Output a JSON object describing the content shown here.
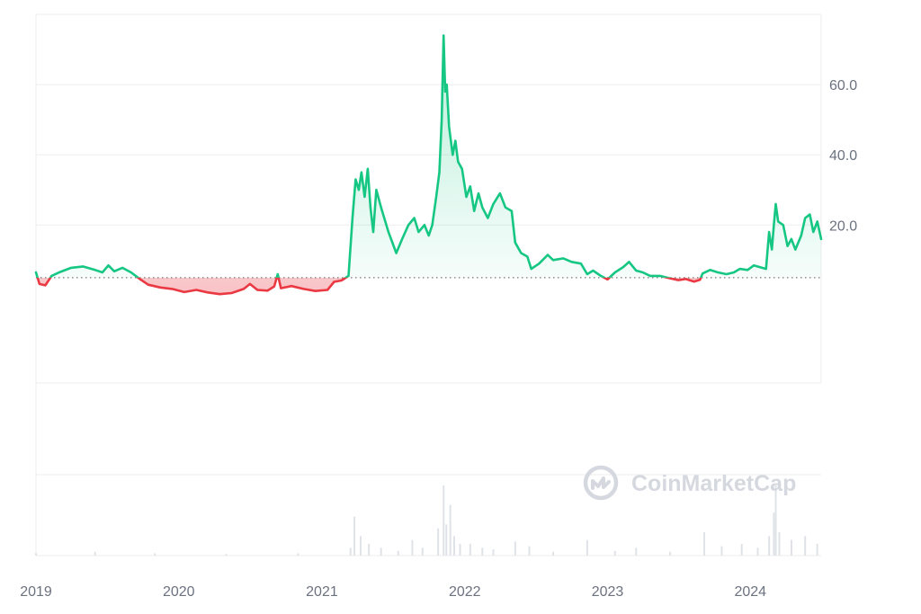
{
  "watermark": {
    "text": "CoinMarketCap",
    "icon": "coinmarketcap-logo-icon"
  },
  "chart_data": {
    "type": "area",
    "xlabel": "",
    "ylabel": "",
    "x_tick_labels": [
      "2019",
      "2020",
      "2021",
      "2022",
      "2023",
      "2024"
    ],
    "y_tick_labels": [
      "20.0",
      "40.0",
      "60.0"
    ],
    "x_range": [
      "2019-01-01",
      "2024-06-30"
    ],
    "y_range": [
      -25,
      80
    ],
    "baseline": 5.0,
    "colors": {
      "above": "#16c784",
      "below": "#ea3943",
      "grid": "#eeeeee",
      "baseline": "#777777",
      "volume": "#dfe3e8"
    },
    "grid": true,
    "legend": "none",
    "series": [
      {
        "values": [
          [
            "2019-01-01",
            6.5
          ],
          [
            "2019-01-10",
            3.2
          ],
          [
            "2019-01-25",
            2.8
          ],
          [
            "2019-02-10",
            5.5
          ],
          [
            "2019-03-01",
            6.5
          ],
          [
            "2019-04-01",
            7.8
          ],
          [
            "2019-05-01",
            8.2
          ],
          [
            "2019-06-01",
            7.2
          ],
          [
            "2019-06-20",
            6.5
          ],
          [
            "2019-07-05",
            8.5
          ],
          [
            "2019-07-20",
            6.8
          ],
          [
            "2019-08-10",
            7.8
          ],
          [
            "2019-09-01",
            6.5
          ],
          [
            "2019-09-25",
            4.5
          ],
          [
            "2019-10-15",
            3.0
          ],
          [
            "2019-11-15",
            2.2
          ],
          [
            "2019-12-15",
            1.8
          ],
          [
            "2020-01-15",
            0.9
          ],
          [
            "2020-02-15",
            1.5
          ],
          [
            "2020-03-15",
            0.8
          ],
          [
            "2020-04-15",
            0.3
          ],
          [
            "2020-05-15",
            0.6
          ],
          [
            "2020-06-15",
            1.8
          ],
          [
            "2020-07-01",
            3.2
          ],
          [
            "2020-07-20",
            1.5
          ],
          [
            "2020-08-15",
            1.3
          ],
          [
            "2020-09-01",
            2.5
          ],
          [
            "2020-09-10",
            6.0
          ],
          [
            "2020-09-18",
            2.0
          ],
          [
            "2020-10-15",
            2.6
          ],
          [
            "2020-11-15",
            1.8
          ],
          [
            "2020-12-15",
            1.2
          ],
          [
            "2021-01-15",
            1.5
          ],
          [
            "2021-02-01",
            3.8
          ],
          [
            "2021-02-20",
            4.2
          ],
          [
            "2021-03-10",
            5.5
          ],
          [
            "2021-03-20",
            22.0
          ],
          [
            "2021-03-28",
            33.0
          ],
          [
            "2021-04-05",
            30.0
          ],
          [
            "2021-04-12",
            35.0
          ],
          [
            "2021-04-20",
            28.0
          ],
          [
            "2021-04-28",
            36.0
          ],
          [
            "2021-05-05",
            25.0
          ],
          [
            "2021-05-12",
            18.0
          ],
          [
            "2021-05-20",
            30.0
          ],
          [
            "2021-06-01",
            25.0
          ],
          [
            "2021-06-20",
            18.0
          ],
          [
            "2021-07-10",
            12.0
          ],
          [
            "2021-07-25",
            16.0
          ],
          [
            "2021-08-10",
            20.0
          ],
          [
            "2021-08-25",
            22.0
          ],
          [
            "2021-09-05",
            18.0
          ],
          [
            "2021-09-20",
            20.0
          ],
          [
            "2021-10-01",
            17.0
          ],
          [
            "2021-10-10",
            20.0
          ],
          [
            "2021-10-20",
            28.0
          ],
          [
            "2021-10-28",
            35.0
          ],
          [
            "2021-11-03",
            50.0
          ],
          [
            "2021-11-08",
            74.0
          ],
          [
            "2021-11-12",
            58.0
          ],
          [
            "2021-11-16",
            60.0
          ],
          [
            "2021-11-22",
            48.0
          ],
          [
            "2021-12-01",
            40.0
          ],
          [
            "2021-12-08",
            44.0
          ],
          [
            "2021-12-15",
            38.0
          ],
          [
            "2021-12-25",
            36.0
          ],
          [
            "2022-01-05",
            28.0
          ],
          [
            "2022-01-15",
            31.0
          ],
          [
            "2022-01-25",
            24.0
          ],
          [
            "2022-02-05",
            29.0
          ],
          [
            "2022-02-15",
            25.0
          ],
          [
            "2022-03-01",
            22.0
          ],
          [
            "2022-03-15",
            26.0
          ],
          [
            "2022-04-01",
            29.0
          ],
          [
            "2022-04-15",
            25.0
          ],
          [
            "2022-05-01",
            24.0
          ],
          [
            "2022-05-10",
            15.0
          ],
          [
            "2022-05-25",
            12.0
          ],
          [
            "2022-06-10",
            11.0
          ],
          [
            "2022-06-20",
            7.5
          ],
          [
            "2022-07-10",
            9.0
          ],
          [
            "2022-08-01",
            11.5
          ],
          [
            "2022-08-15",
            10.0
          ],
          [
            "2022-09-10",
            10.5
          ],
          [
            "2022-10-01",
            9.5
          ],
          [
            "2022-10-25",
            9.0
          ],
          [
            "2022-11-10",
            6.0
          ],
          [
            "2022-11-25",
            7.0
          ],
          [
            "2022-12-15",
            5.5
          ],
          [
            "2023-01-01",
            4.5
          ],
          [
            "2023-01-20",
            6.5
          ],
          [
            "2023-02-10",
            8.0
          ],
          [
            "2023-02-25",
            9.5
          ],
          [
            "2023-03-15",
            7.0
          ],
          [
            "2023-04-01",
            6.5
          ],
          [
            "2023-04-20",
            5.5
          ],
          [
            "2023-05-15",
            5.5
          ],
          [
            "2023-06-10",
            4.8
          ],
          [
            "2023-07-01",
            4.3
          ],
          [
            "2023-07-20",
            4.6
          ],
          [
            "2023-08-10",
            3.9
          ],
          [
            "2023-08-25",
            4.4
          ],
          [
            "2023-09-01",
            6.2
          ],
          [
            "2023-09-20",
            7.2
          ],
          [
            "2023-10-10",
            6.5
          ],
          [
            "2023-11-01",
            6.0
          ],
          [
            "2023-11-20",
            6.5
          ],
          [
            "2023-12-05",
            7.5
          ],
          [
            "2023-12-25",
            7.2
          ],
          [
            "2024-01-10",
            8.5
          ],
          [
            "2024-01-25",
            8.0
          ],
          [
            "2024-02-10",
            7.5
          ],
          [
            "2024-02-18",
            18.0
          ],
          [
            "2024-02-25",
            13.0
          ],
          [
            "2024-03-01",
            20.0
          ],
          [
            "2024-03-06",
            26.0
          ],
          [
            "2024-03-12",
            21.0
          ],
          [
            "2024-03-25",
            20.0
          ],
          [
            "2024-04-05",
            14.0
          ],
          [
            "2024-04-15",
            16.0
          ],
          [
            "2024-04-25",
            13.0
          ],
          [
            "2024-05-10",
            17.0
          ],
          [
            "2024-05-20",
            22.0
          ],
          [
            "2024-06-01",
            23.0
          ],
          [
            "2024-06-10",
            18.0
          ],
          [
            "2024-06-20",
            21.0
          ],
          [
            "2024-06-30",
            16.0
          ]
        ]
      }
    ],
    "volume": [
      [
        "2019-01-01",
        0.3
      ],
      [
        "2019-06-01",
        0.5
      ],
      [
        "2019-11-01",
        0.3
      ],
      [
        "2020-05-01",
        0.2
      ],
      [
        "2020-11-01",
        0.3
      ],
      [
        "2021-03-15",
        1.0
      ],
      [
        "2021-03-25",
        5.0
      ],
      [
        "2021-04-10",
        2.5
      ],
      [
        "2021-05-01",
        1.5
      ],
      [
        "2021-06-01",
        1.0
      ],
      [
        "2021-07-15",
        0.6
      ],
      [
        "2021-08-20",
        2.0
      ],
      [
        "2021-09-15",
        1.0
      ],
      [
        "2021-10-25",
        3.5
      ],
      [
        "2021-11-08",
        9.0
      ],
      [
        "2021-11-15",
        4.0
      ],
      [
        "2021-11-25",
        6.5
      ],
      [
        "2021-12-05",
        2.5
      ],
      [
        "2021-12-20",
        1.5
      ],
      [
        "2022-01-15",
        1.5
      ],
      [
        "2022-02-15",
        1.0
      ],
      [
        "2022-03-15",
        0.8
      ],
      [
        "2022-05-10",
        1.8
      ],
      [
        "2022-06-15",
        1.2
      ],
      [
        "2022-08-15",
        0.5
      ],
      [
        "2022-11-10",
        2.0
      ],
      [
        "2023-01-20",
        0.6
      ],
      [
        "2023-03-15",
        1.0
      ],
      [
        "2023-06-10",
        0.5
      ],
      [
        "2023-09-05",
        3.0
      ],
      [
        "2023-10-20",
        1.2
      ],
      [
        "2023-12-10",
        1.5
      ],
      [
        "2024-01-20",
        1.0
      ],
      [
        "2024-02-18",
        2.5
      ],
      [
        "2024-03-01",
        5.5
      ],
      [
        "2024-03-06",
        9.0
      ],
      [
        "2024-03-15",
        3.0
      ],
      [
        "2024-04-15",
        2.0
      ],
      [
        "2024-05-20",
        2.5
      ],
      [
        "2024-06-20",
        1.5
      ]
    ]
  }
}
